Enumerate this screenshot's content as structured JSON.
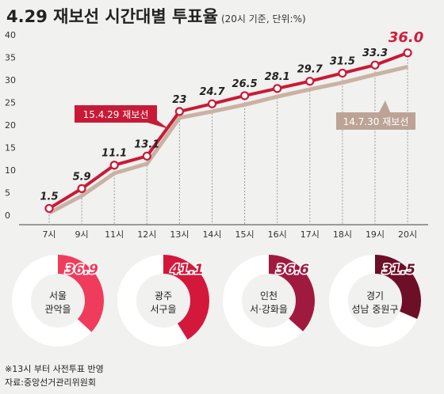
{
  "title": "4.29 재보선 시간대별 투표율",
  "unit": "(20시 기준, 단위:%)",
  "chart_data": [
    {
      "type": "line",
      "categories": [
        "7시",
        "9시",
        "11시",
        "12시",
        "13시",
        "14시",
        "15시",
        "16시",
        "17시",
        "18시",
        "19시",
        "20시"
      ],
      "ylim": [
        0,
        40
      ],
      "yticks": [
        0,
        5,
        10,
        15,
        20,
        25,
        30,
        35,
        40
      ],
      "series": [
        {
          "name": "15.4.29 재보선",
          "color": "#c81a36",
          "values": [
            1.5,
            5.9,
            11.1,
            13.1,
            23,
            24.7,
            26.5,
            28.1,
            29.7,
            31.5,
            33.3,
            36.0
          ],
          "labels": [
            "1.5",
            "5.9",
            "11.1",
            "13.1",
            "23",
            "24.7",
            "26.5",
            "28.1",
            "29.7",
            "31.5",
            "33.3",
            "36.0"
          ]
        },
        {
          "name": "14.7.30 재보선",
          "color": "#c9b2a4",
          "values": [
            0.5,
            4.3,
            9.3,
            11.4,
            21.6,
            23.0,
            24.5,
            26.3,
            27.9,
            29.4,
            31.2,
            32.9
          ]
        }
      ]
    },
    {
      "type": "pie",
      "donuts": [
        {
          "name": "서울 관악을",
          "lines": [
            "서울",
            "관악을"
          ],
          "value": 36.9,
          "label": "36.9",
          "color": "#f03c5c"
        },
        {
          "name": "광주 서구을",
          "lines": [
            "광주",
            "서구을"
          ],
          "value": 41.1,
          "label": "41.1",
          "color": "#d3183c"
        },
        {
          "name": "인천 서·강화을",
          "lines": [
            "인천",
            "서·강화을"
          ],
          "value": 36.6,
          "label": "36.6",
          "color": "#a01a40"
        },
        {
          "name": "경기 성남 중원구",
          "lines": [
            "경기",
            "성남 중원구"
          ],
          "value": 31.5,
          "label": "31.5",
          "color": "#6e0f28"
        }
      ]
    }
  ],
  "footnote": "※13시 부터 사전투표 반영",
  "source": "자료:중앙선거관리위원회"
}
